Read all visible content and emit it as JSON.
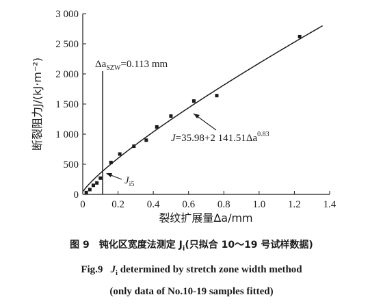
{
  "chart_data": {
    "type": "scatter",
    "xlabel": "裂纹扩展量Δa/mm",
    "ylabel": "断裂阻力J/(kJ·m⁻²)",
    "xlim": [
      0,
      1.4
    ],
    "ylim": [
      0,
      3000
    ],
    "x_ticks": [
      0,
      0.2,
      0.4,
      0.6,
      0.8,
      1.0,
      1.2,
      1.4
    ],
    "x_tick_labels": [
      "0",
      "0.2",
      "0.4",
      "0.6",
      "0.8",
      "1.0",
      "1.2",
      "1.4"
    ],
    "y_ticks": [
      0,
      500,
      1000,
      1500,
      2000,
      2500,
      3000
    ],
    "y_tick_labels": [
      "0",
      "500",
      "1 000",
      "1 500",
      "2 000",
      "2 500",
      "3 000"
    ],
    "grid": false,
    "points": [
      {
        "x": 0.02,
        "y": 30
      },
      {
        "x": 0.04,
        "y": 80
      },
      {
        "x": 0.06,
        "y": 150
      },
      {
        "x": 0.08,
        "y": 190
      },
      {
        "x": 0.1,
        "y": 270
      },
      {
        "x": 0.16,
        "y": 530
      },
      {
        "x": 0.21,
        "y": 670
      },
      {
        "x": 0.29,
        "y": 800
      },
      {
        "x": 0.36,
        "y": 900
      },
      {
        "x": 0.42,
        "y": 1120
      },
      {
        "x": 0.5,
        "y": 1300
      },
      {
        "x": 0.63,
        "y": 1550
      },
      {
        "x": 0.76,
        "y": 1640
      },
      {
        "x": 1.23,
        "y": 2620
      }
    ],
    "fit": {
      "a": 35.98,
      "b": 2141.51,
      "n": 0.83,
      "x_range": [
        0.003,
        1.36
      ]
    },
    "vertical_line_x": 0.113,
    "annotations": {
      "szw_prefix": "Δa",
      "szw_sub": "SZW",
      "szw_value": "=0.113 mm",
      "eq_j": "J",
      "eq_body": "=35.98+2 141.51Δa",
      "eq_exp": "0.83",
      "ji_j": "J",
      "ji_sub": "i5"
    }
  },
  "caption": {
    "zh_fig": "图 9",
    "zh_text": "钝化区宽度法测定 J",
    "zh_sub": "i",
    "zh_tail": "(只拟合 10～19 号试样数据)",
    "en_fig": "Fig.9",
    "en_j": "J",
    "en_sub": "i",
    "en_text": " determined by stretch zone width method",
    "en_line2": "(only data of No.10-19 samples fitted)"
  }
}
